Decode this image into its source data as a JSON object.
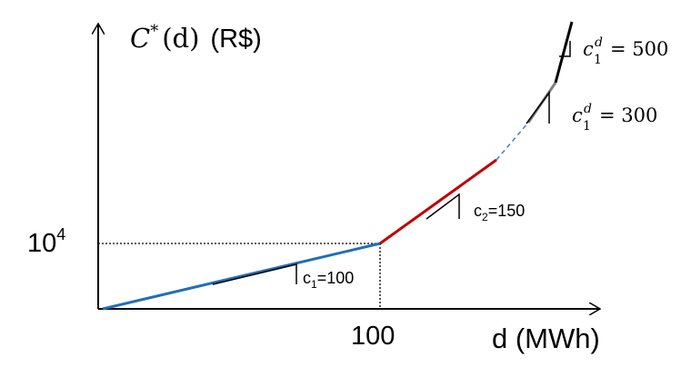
{
  "diagram": {
    "y_axis_label": {
      "symbol": "C",
      "sup": "*",
      "arg": "(d)",
      "unit": "(R$)"
    },
    "x_axis_label": "d (MWh)",
    "y_tick_base": "10",
    "y_tick_exp": "4",
    "x_tick": "100",
    "slopes": {
      "c1": {
        "base": "c",
        "sub": "1",
        "rest": "=100"
      },
      "c2": {
        "base": "c",
        "sub": "2",
        "rest": "=150"
      },
      "c1d_300": {
        "base": "c",
        "sup": "d",
        "sub": "1",
        "rest": "= 300"
      },
      "c1d_500": {
        "base": "c",
        "sup": "d",
        "sub": "1",
        "rest": "= 500"
      }
    },
    "colors": {
      "segment_c1": "#1f6fb8",
      "segment_c2": "#c00000",
      "dashed_transition": "#4a86c5",
      "segment_c1d_300": "#808080",
      "segment_c1d_500": "#000000",
      "axes": "#000000"
    }
  }
}
